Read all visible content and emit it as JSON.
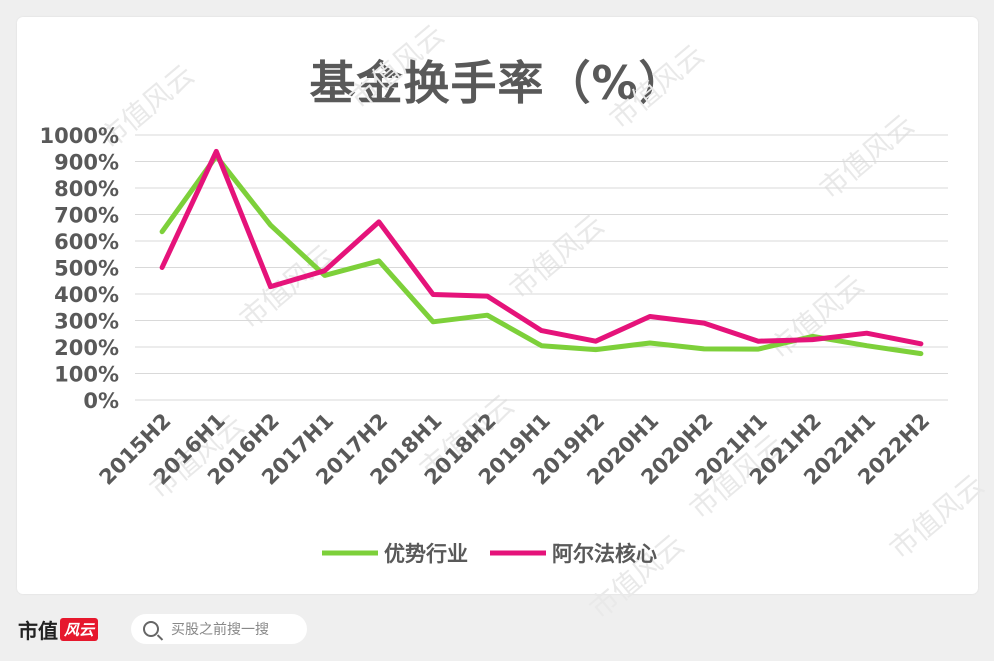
{
  "chart_data": {
    "type": "line",
    "title": "基金换手率（%）",
    "categories": [
      "2015H2",
      "2016H1",
      "2016H2",
      "2017H1",
      "2017H2",
      "2018H1",
      "2018H2",
      "2019H1",
      "2019H2",
      "2020H1",
      "2020H2",
      "2021H1",
      "2021H2",
      "2022H1",
      "2022H2"
    ],
    "ylim": [
      0,
      1000
    ],
    "yticks": [
      "0%",
      "100%",
      "200%",
      "300%",
      "400%",
      "500%",
      "600%",
      "700%",
      "800%",
      "900%",
      "1000%"
    ],
    "grid": true,
    "legend_position": "bottom",
    "series": [
      {
        "name": "优势行业",
        "color": "#7dd03a",
        "values": [
          635,
          920,
          660,
          470,
          525,
          295,
          320,
          205,
          190,
          215,
          193,
          192,
          240,
          205,
          175
        ]
      },
      {
        "name": "阿尔法核心",
        "color": "#e5137a",
        "values": [
          500,
          938,
          428,
          488,
          672,
          398,
          392,
          262,
          222,
          315,
          290,
          222,
          228,
          252,
          212
        ]
      }
    ]
  },
  "footer": {
    "logo_text": "市值",
    "logo_mark": "风云",
    "search_placeholder": "买股之前搜一搜"
  },
  "watermark": "市值风云"
}
